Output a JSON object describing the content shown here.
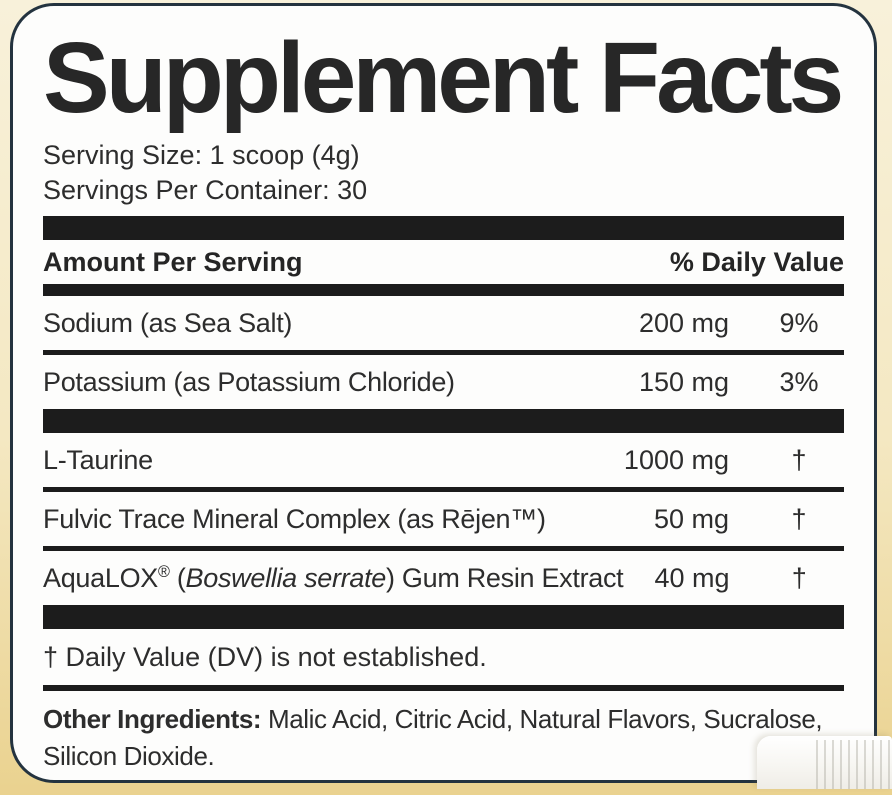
{
  "label": {
    "title": "Supplement Facts",
    "serving_size": "Serving Size: 1 scoop (4g)",
    "servings_per_container": "Servings Per Container: 30",
    "header": {
      "amount": "Amount Per Serving",
      "daily_value": "% Daily Value"
    },
    "rows": [
      {
        "segments": [
          {
            "text": "Sodium (as Sea Salt)",
            "style": "normal"
          }
        ],
        "amount": "200 mg",
        "dv": "9%",
        "separator_after": "thin"
      },
      {
        "segments": [
          {
            "text": "Potassium (as Potassium Chloride)",
            "style": "normal"
          }
        ],
        "amount": "150 mg",
        "dv": "3%",
        "separator_after": "thick"
      },
      {
        "segments": [
          {
            "text": "L-Taurine",
            "style": "normal"
          }
        ],
        "amount": "1000 mg",
        "dv": "†",
        "separator_after": "thin"
      },
      {
        "segments": [
          {
            "text": "Fulvic Trace Mineral Complex (as Rējen",
            "style": "normal"
          },
          {
            "text": "™",
            "style": "normal"
          },
          {
            "text": ")",
            "style": "normal"
          }
        ],
        "amount": "50 mg",
        "dv": "†",
        "separator_after": "thin"
      },
      {
        "segments": [
          {
            "text": "AquaLOX",
            "style": "normal"
          },
          {
            "text": "®",
            "style": "sup"
          },
          {
            "text": " (",
            "style": "normal"
          },
          {
            "text": "Boswellia serrate",
            "style": "italic"
          },
          {
            "text": ") Gum Resin Extract",
            "style": "normal"
          }
        ],
        "amount": "40 mg",
        "dv": "†",
        "separator_after": "thick"
      }
    ],
    "footnote": "† Daily Value (DV) is not established.",
    "other_ingredients": {
      "label": "Other Ingredients:",
      "text": " Malic Acid, Citric Acid, Natural Flavors, Sucralose, Silicon Dioxide."
    },
    "colors": {
      "page_background_top": "#f8f1da",
      "page_background_bottom": "#ead28f",
      "panel_background": "#fdfdfc",
      "panel_border": "#24333f",
      "bar": "#1c1c1c",
      "text": "#2d2d2d"
    }
  }
}
